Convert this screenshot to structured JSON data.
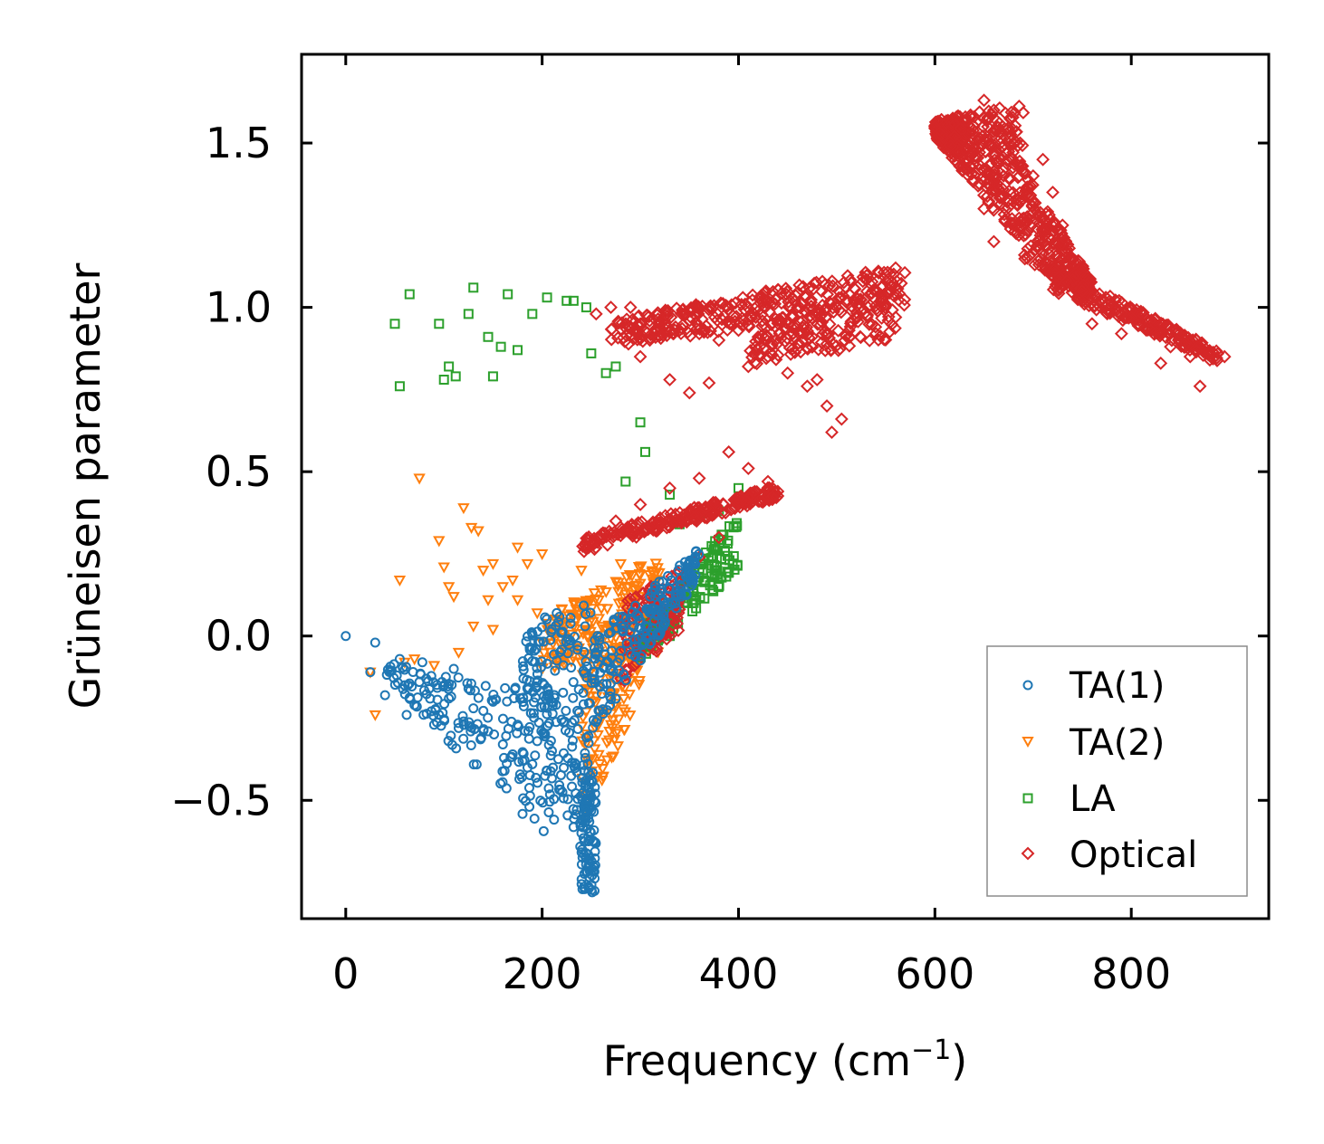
{
  "chart_data": {
    "type": "scatter",
    "title": "",
    "xlabel": "Frequency (cm",
    "xlabel_sup": "−1",
    "xlabel_end": ")",
    "ylabel": "Grüneisen parameter",
    "xlim": [
      -45,
      940
    ],
    "ylim": [
      -0.86,
      1.77
    ],
    "xticks": [
      0,
      200,
      400,
      600,
      800
    ],
    "xtick_labels": [
      "0",
      "200",
      "400",
      "600",
      "800"
    ],
    "yticks": [
      -0.5,
      0.0,
      0.5,
      1.0,
      1.5
    ],
    "ytick_labels": [
      "−0.5",
      "0.0",
      "0.5",
      "1.0",
      "1.5"
    ],
    "grid": false,
    "legend_position": "lower-right",
    "series": [
      {
        "name": "TA(1)",
        "marker": "circle",
        "color": "#1f77b4",
        "points": [
          [
            0,
            0.0
          ],
          [
            30,
            -0.02
          ],
          [
            25,
            -0.11
          ],
          [
            40,
            -0.18
          ],
          [
            55,
            -0.07
          ],
          [
            52,
            -0.12
          ],
          [
            60,
            -0.15
          ],
          [
            62,
            -0.24
          ],
          [
            65,
            -0.19
          ],
          [
            70,
            -0.21
          ],
          [
            75,
            -0.14
          ],
          [
            78,
            -0.08
          ],
          [
            82,
            -0.13
          ],
          [
            85,
            -0.16
          ],
          [
            90,
            -0.27
          ],
          [
            95,
            -0.24
          ],
          [
            98,
            -0.14
          ],
          [
            105,
            -0.19
          ],
          [
            110,
            -0.1
          ],
          [
            115,
            -0.28
          ],
          [
            120,
            -0.26
          ],
          [
            125,
            -0.16
          ],
          [
            130,
            -0.22
          ],
          [
            138,
            -0.31
          ],
          [
            145,
            -0.29
          ],
          [
            150,
            -0.2
          ],
          [
            160,
            -0.33
          ],
          [
            170,
            -0.36
          ],
          [
            175,
            -0.27
          ],
          [
            180,
            -0.38
          ],
          [
            190,
            -0.39
          ],
          [
            195,
            -0.32
          ],
          [
            205,
            -0.41
          ],
          [
            210,
            -0.35
          ]
        ]
      },
      {
        "name": "TA(2)",
        "marker": "triangle",
        "color": "#ff7f0e",
        "points": [
          [
            75,
            0.48
          ],
          [
            120,
            0.39
          ],
          [
            128,
            0.33
          ],
          [
            135,
            0.32
          ],
          [
            95,
            0.29
          ],
          [
            100,
            0.21
          ],
          [
            55,
            0.17
          ],
          [
            105,
            0.15
          ],
          [
            110,
            0.12
          ],
          [
            140,
            0.2
          ],
          [
            150,
            0.22
          ],
          [
            160,
            0.15
          ],
          [
            170,
            0.17
          ],
          [
            175,
            0.27
          ],
          [
            185,
            0.22
          ],
          [
            200,
            0.25
          ],
          [
            145,
            0.11
          ],
          [
            175,
            0.11
          ],
          [
            195,
            0.07
          ],
          [
            130,
            0.03
          ],
          [
            150,
            0.02
          ],
          [
            115,
            -0.05
          ],
          [
            30,
            -0.24
          ],
          [
            25,
            -0.11
          ],
          [
            60,
            -0.08
          ],
          [
            70,
            -0.07
          ],
          [
            90,
            -0.09
          ],
          [
            200,
            -0.02
          ],
          [
            220,
            0.08
          ],
          [
            240,
            0.2
          ],
          [
            260,
            0.14
          ],
          [
            280,
            0.22
          ],
          [
            300,
            0.16
          ]
        ]
      },
      {
        "name": "LA",
        "marker": "square",
        "color": "#2ca02c",
        "points": [
          [
            50,
            0.95
          ],
          [
            55,
            0.76
          ],
          [
            65,
            1.04
          ],
          [
            95,
            0.95
          ],
          [
            100,
            0.78
          ],
          [
            105,
            0.82
          ],
          [
            112,
            0.79
          ],
          [
            125,
            0.98
          ],
          [
            130,
            1.06
          ],
          [
            145,
            0.91
          ],
          [
            150,
            0.79
          ],
          [
            158,
            0.88
          ],
          [
            165,
            1.04
          ],
          [
            175,
            0.87
          ],
          [
            190,
            0.98
          ],
          [
            205,
            1.03
          ],
          [
            225,
            1.02
          ],
          [
            232,
            1.02
          ],
          [
            245,
            1.0
          ],
          [
            250,
            0.86
          ],
          [
            265,
            0.8
          ],
          [
            275,
            0.82
          ],
          [
            300,
            0.65
          ],
          [
            305,
            0.56
          ],
          [
            285,
            0.47
          ],
          [
            330,
            0.43
          ],
          [
            340,
            0.34
          ],
          [
            360,
            0.37
          ],
          [
            380,
            0.38
          ],
          [
            400,
            0.45
          ],
          [
            350,
            0.2
          ],
          [
            320,
            0.1
          ],
          [
            310,
            0.04
          ],
          [
            330,
            0.0
          ]
        ]
      },
      {
        "name": "Optical",
        "marker": "diamond",
        "color": "#d62728",
        "points": [
          [
            255,
            0.98
          ],
          [
            270,
            1.0
          ],
          [
            290,
            1.0
          ],
          [
            300,
            0.95
          ],
          [
            320,
            0.95
          ],
          [
            340,
            0.93
          ],
          [
            360,
            0.92
          ],
          [
            380,
            0.9
          ],
          [
            400,
            0.93
          ],
          [
            420,
            0.91
          ],
          [
            440,
            0.96
          ],
          [
            460,
            1.0
          ],
          [
            480,
            0.98
          ],
          [
            500,
            1.0
          ],
          [
            520,
            1.03
          ],
          [
            540,
            1.05
          ],
          [
            560,
            1.12
          ],
          [
            480,
            0.78
          ],
          [
            490,
            0.7
          ],
          [
            495,
            0.62
          ],
          [
            505,
            0.66
          ],
          [
            300,
            0.85
          ],
          [
            330,
            0.78
          ],
          [
            350,
            0.74
          ],
          [
            370,
            0.77
          ],
          [
            410,
            0.82
          ],
          [
            430,
            0.85
          ],
          [
            450,
            0.8
          ],
          [
            470,
            0.76
          ],
          [
            540,
            0.92
          ],
          [
            560,
            0.97
          ],
          [
            250,
            0.28
          ],
          [
            275,
            0.35
          ],
          [
            300,
            0.4
          ],
          [
            330,
            0.45
          ],
          [
            360,
            0.48
          ],
          [
            390,
            0.56
          ],
          [
            410,
            0.51
          ],
          [
            430,
            0.47
          ],
          [
            440,
            0.44
          ],
          [
            400,
            0.4
          ],
          [
            380,
            0.3
          ],
          [
            360,
            0.24
          ],
          [
            340,
            0.16
          ],
          [
            320,
            0.08
          ],
          [
            300,
            -0.05
          ],
          [
            280,
            -0.13
          ],
          [
            600,
            1.55
          ],
          [
            620,
            1.52
          ],
          [
            640,
            1.58
          ],
          [
            650,
            1.63
          ],
          [
            660,
            1.6
          ],
          [
            665,
            1.48
          ],
          [
            670,
            1.4
          ],
          [
            650,
            1.3
          ],
          [
            660,
            1.2
          ],
          [
            680,
            1.25
          ],
          [
            690,
            1.33
          ],
          [
            700,
            1.4
          ],
          [
            710,
            1.45
          ],
          [
            720,
            1.35
          ],
          [
            730,
            1.25
          ],
          [
            740,
            1.15
          ],
          [
            750,
            1.05
          ],
          [
            760,
            1.03
          ],
          [
            780,
            1.0
          ],
          [
            800,
            0.97
          ],
          [
            820,
            0.93
          ],
          [
            840,
            0.88
          ],
          [
            860,
            0.85
          ],
          [
            880,
            0.84
          ],
          [
            895,
            0.85
          ],
          [
            870,
            0.76
          ],
          [
            830,
            0.83
          ],
          [
            790,
            0.92
          ],
          [
            760,
            0.95
          ]
        ]
      }
    ],
    "clusters": [
      {
        "series": "TA(1)",
        "x": [
          0,
          0
        ],
        "count": 0
      },
      {
        "series": "TA(1)",
        "x": [
          40,
          250
        ],
        "base": [
          [
            40,
            -0.13
          ],
          [
            250,
            -0.75
          ]
        ],
        "top": [
          [
            40,
            -0.08
          ],
          [
            250,
            -0.2
          ]
        ],
        "count": 180
      },
      {
        "series": "TA(1)",
        "x": [
          180,
          250
        ],
        "base": [
          [
            180,
            -0.15
          ],
          [
            250,
            -0.75
          ]
        ],
        "top": [
          [
            180,
            0.05
          ],
          [
            250,
            0.1
          ]
        ],
        "count": 160
      },
      {
        "series": "TA(1)",
        "x": [
          240,
          255
        ],
        "base": [
          [
            240,
            -0.78
          ],
          [
            255,
            -0.78
          ]
        ],
        "top": [
          [
            240,
            -0.4
          ],
          [
            255,
            -0.4
          ]
        ],
        "count": 90
      },
      {
        "series": "TA(1)",
        "x": [
          250,
          360
        ],
        "base": [
          [
            250,
            -0.3
          ],
          [
            360,
            0.18
          ]
        ],
        "top": [
          [
            250,
            0.0
          ],
          [
            360,
            0.27
          ]
        ],
        "count": 200
      },
      {
        "series": "TA(2)",
        "x": [
          200,
          320
        ],
        "base": [
          [
            200,
            -0.1
          ],
          [
            320,
            -0.05
          ]
        ],
        "top": [
          [
            200,
            0.05
          ],
          [
            320,
            0.25
          ]
        ],
        "count": 220
      },
      {
        "series": "TA(2)",
        "x": [
          240,
          300
        ],
        "base": [
          [
            240,
            -0.6
          ],
          [
            300,
            -0.18
          ]
        ],
        "top": [
          [
            240,
            -0.05
          ],
          [
            300,
            0.0
          ]
        ],
        "count": 120
      },
      {
        "series": "LA",
        "x": [
          300,
          400
        ],
        "base": [
          [
            300,
            -0.07
          ],
          [
            400,
            0.2
          ]
        ],
        "top": [
          [
            300,
            0.0
          ],
          [
            400,
            0.38
          ]
        ],
        "count": 160
      },
      {
        "series": "Optical",
        "x": [
          280,
          340
        ],
        "base": [
          [
            280,
            -0.15
          ],
          [
            340,
            0.02
          ]
        ],
        "top": [
          [
            280,
            0.1
          ],
          [
            340,
            0.2
          ]
        ],
        "count": 90
      },
      {
        "series": "Optical",
        "x": [
          240,
          440
        ],
        "base": [
          [
            240,
            0.25
          ],
          [
            440,
            0.42
          ]
        ],
        "top": [
          [
            240,
            0.3
          ],
          [
            440,
            0.46
          ]
        ],
        "count": 220
      },
      {
        "series": "Optical",
        "x": [
          270,
          570
        ],
        "base": [
          [
            270,
            0.88
          ],
          [
            570,
            1.0
          ]
        ],
        "top": [
          [
            270,
            0.96
          ],
          [
            570,
            1.13
          ]
        ],
        "count": 320
      },
      {
        "series": "Optical",
        "x": [
          410,
          560
        ],
        "base": [
          [
            410,
            0.82
          ],
          [
            560,
            0.9
          ]
        ],
        "top": [
          [
            410,
            0.9
          ],
          [
            560,
            1.08
          ]
        ],
        "count": 140
      },
      {
        "series": "Optical",
        "x": [
          600,
          690
        ],
        "base": [
          [
            600,
            1.52
          ],
          [
            690,
            1.18
          ]
        ],
        "top": [
          [
            600,
            1.57
          ],
          [
            690,
            1.62
          ]
        ],
        "count": 360
      },
      {
        "series": "Optical",
        "x": [
          690,
          760
        ],
        "base": [
          [
            690,
            1.15
          ],
          [
            760,
            1.02
          ]
        ],
        "top": [
          [
            690,
            1.42
          ],
          [
            760,
            1.08
          ]
        ],
        "count": 220
      },
      {
        "series": "Optical",
        "x": [
          720,
          890
        ],
        "base": [
          [
            720,
            1.05
          ],
          [
            890,
            0.83
          ]
        ],
        "top": [
          [
            720,
            1.12
          ],
          [
            890,
            0.87
          ]
        ],
        "count": 200
      }
    ]
  }
}
